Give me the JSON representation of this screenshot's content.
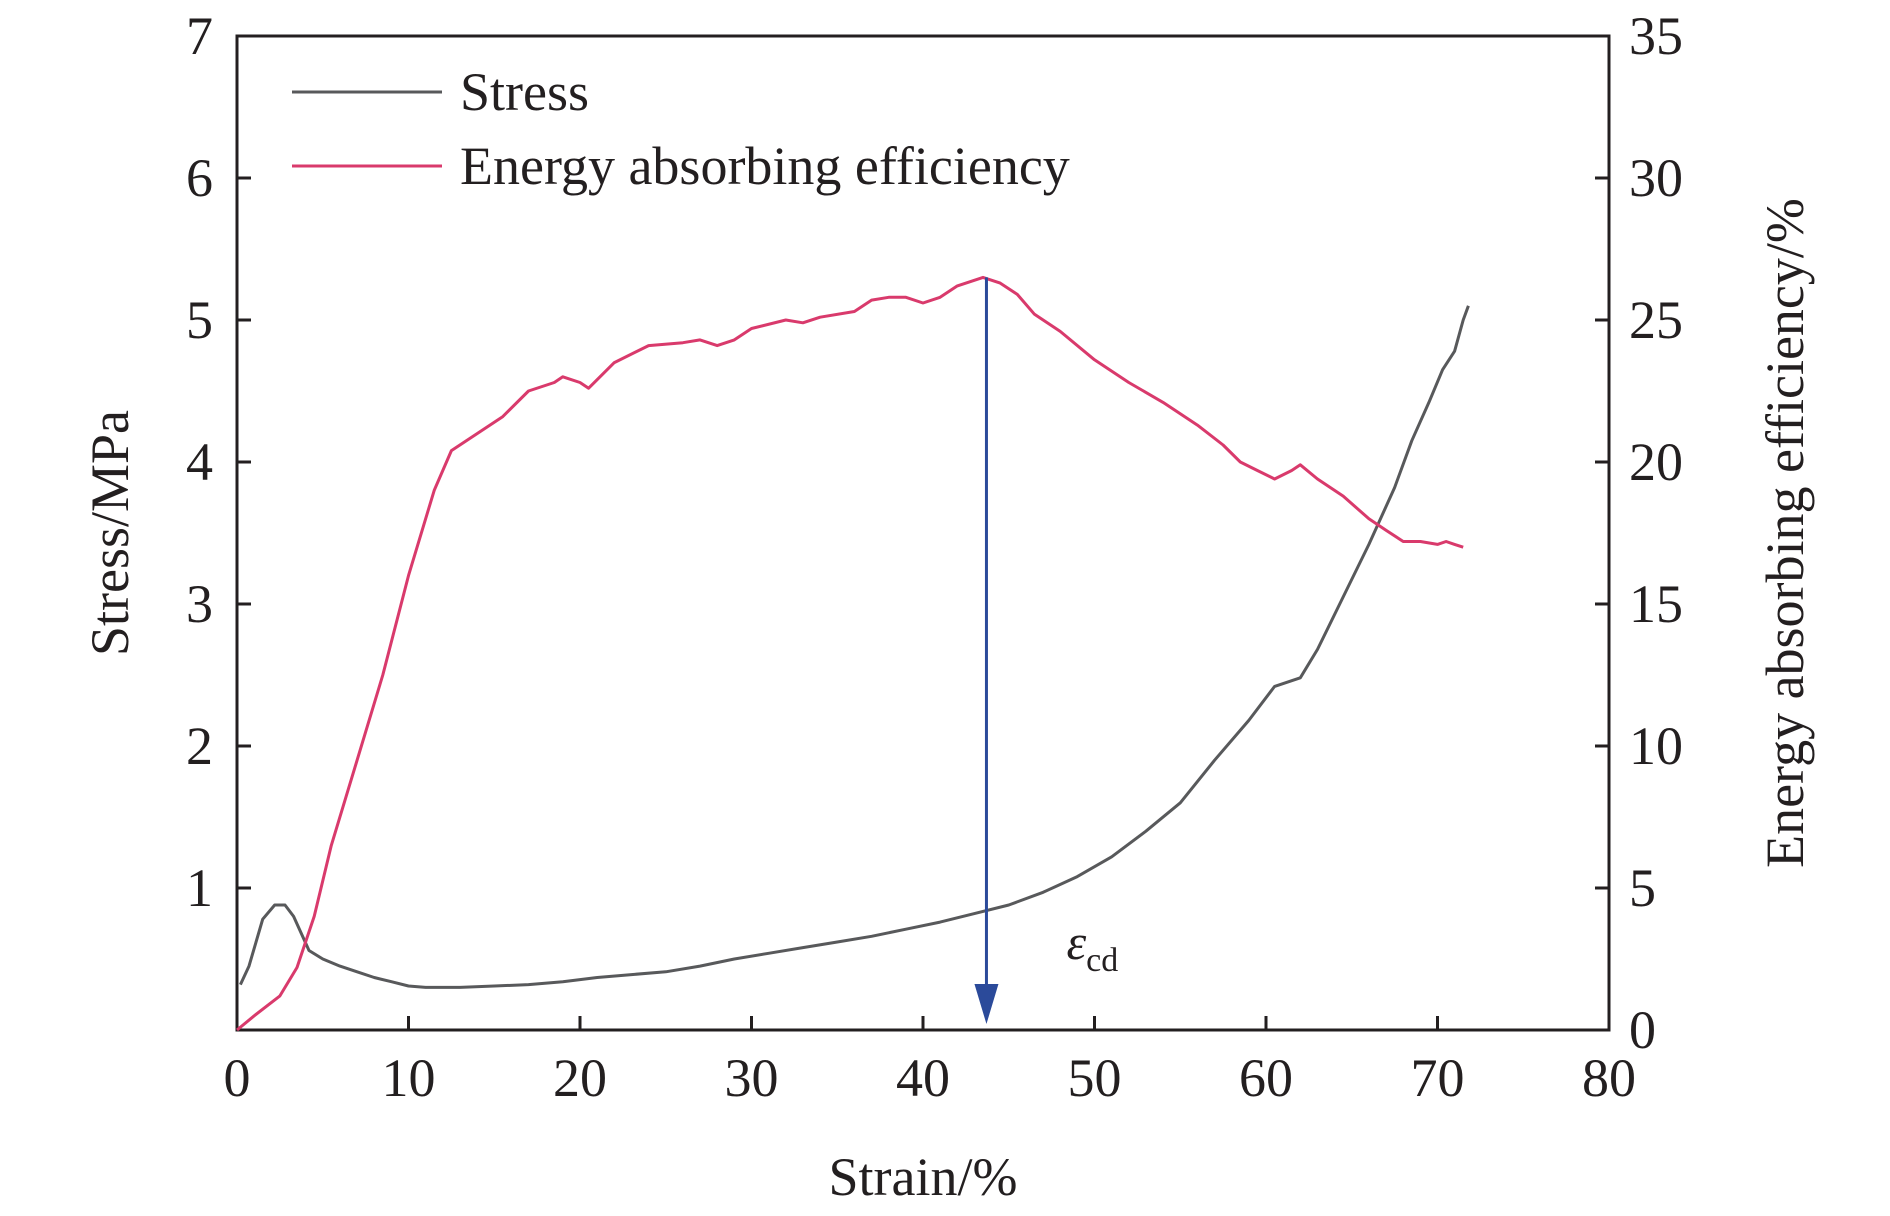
{
  "chart_data": {
    "type": "line",
    "xlabel": "Strain/%",
    "ylabel_left": "Stress/MPa",
    "ylabel_right": "Energy absorbing efficiency/%",
    "xlim": [
      0,
      80
    ],
    "ylim_left": [
      0,
      7
    ],
    "ylim_right": [
      0,
      35
    ],
    "x_ticks": [
      "0",
      "10",
      "20",
      "30",
      "40",
      "50",
      "60",
      "70",
      "80"
    ],
    "y_left_ticks": [
      "1",
      "2",
      "3",
      "4",
      "5",
      "6",
      "7"
    ],
    "y_right_ticks": [
      "0",
      "5",
      "10",
      "15",
      "20",
      "25",
      "30",
      "35"
    ],
    "legend_position": "top-left",
    "grid": false,
    "series": [
      {
        "name": "Stress",
        "axis": "left",
        "color": "#58595b",
        "points": [
          [
            0.2,
            0.32
          ],
          [
            0.7,
            0.45
          ],
          [
            1.5,
            0.78
          ],
          [
            2.2,
            0.88
          ],
          [
            2.8,
            0.88
          ],
          [
            3.3,
            0.8
          ],
          [
            4.2,
            0.56
          ],
          [
            5,
            0.5
          ],
          [
            6,
            0.45
          ],
          [
            7,
            0.41
          ],
          [
            8,
            0.37
          ],
          [
            9,
            0.34
          ],
          [
            10,
            0.31
          ],
          [
            11,
            0.3
          ],
          [
            12,
            0.3
          ],
          [
            13,
            0.3
          ],
          [
            15,
            0.31
          ],
          [
            17,
            0.32
          ],
          [
            19,
            0.34
          ],
          [
            21,
            0.37
          ],
          [
            23,
            0.39
          ],
          [
            25,
            0.41
          ],
          [
            27,
            0.45
          ],
          [
            29,
            0.5
          ],
          [
            31,
            0.54
          ],
          [
            33,
            0.58
          ],
          [
            35,
            0.62
          ],
          [
            37,
            0.66
          ],
          [
            39,
            0.71
          ],
          [
            41,
            0.76
          ],
          [
            43,
            0.82
          ],
          [
            45,
            0.88
          ],
          [
            47,
            0.97
          ],
          [
            49,
            1.08
          ],
          [
            51,
            1.22
          ],
          [
            53,
            1.4
          ],
          [
            55,
            1.6
          ],
          [
            57,
            1.9
          ],
          [
            59,
            2.18
          ],
          [
            60.5,
            2.42
          ],
          [
            62,
            2.48
          ],
          [
            63,
            2.68
          ],
          [
            64.5,
            3.05
          ],
          [
            66,
            3.42
          ],
          [
            67.5,
            3.82
          ],
          [
            68.5,
            4.15
          ],
          [
            69.5,
            4.42
          ],
          [
            70.3,
            4.65
          ],
          [
            71,
            4.78
          ],
          [
            71.5,
            5.0
          ],
          [
            71.8,
            5.1
          ]
        ]
      },
      {
        "name": "Energy absorbing efficiency",
        "axis": "right",
        "color": "#d93a6c",
        "points": [
          [
            0,
            0
          ],
          [
            1,
            0.5
          ],
          [
            2.5,
            1.2
          ],
          [
            3.5,
            2.2
          ],
          [
            4.5,
            4
          ],
          [
            5.5,
            6.5
          ],
          [
            7,
            9.5
          ],
          [
            8.5,
            12.5
          ],
          [
            10,
            16
          ],
          [
            11.5,
            19
          ],
          [
            12.5,
            20.4
          ],
          [
            14,
            21
          ],
          [
            15.5,
            21.6
          ],
          [
            17,
            22.5
          ],
          [
            18.5,
            22.8
          ],
          [
            19,
            23
          ],
          [
            20,
            22.8
          ],
          [
            20.5,
            22.6
          ],
          [
            22,
            23.5
          ],
          [
            24,
            24.1
          ],
          [
            26,
            24.2
          ],
          [
            27,
            24.3
          ],
          [
            28,
            24.1
          ],
          [
            29,
            24.3
          ],
          [
            30,
            24.7
          ],
          [
            32,
            25
          ],
          [
            33,
            24.9
          ],
          [
            34,
            25.1
          ],
          [
            36,
            25.3
          ],
          [
            37,
            25.7
          ],
          [
            38,
            25.8
          ],
          [
            39,
            25.8
          ],
          [
            40,
            25.6
          ],
          [
            41,
            25.8
          ],
          [
            42,
            26.2
          ],
          [
            43.5,
            26.5
          ],
          [
            44.5,
            26.3
          ],
          [
            45.5,
            25.9
          ],
          [
            46.5,
            25.2
          ],
          [
            48,
            24.6
          ],
          [
            50,
            23.6
          ],
          [
            52,
            22.8
          ],
          [
            54,
            22.1
          ],
          [
            56,
            21.3
          ],
          [
            57.5,
            20.6
          ],
          [
            58.5,
            20
          ],
          [
            59.5,
            19.7
          ],
          [
            60.5,
            19.4
          ],
          [
            61.5,
            19.7
          ],
          [
            62,
            19.9
          ],
          [
            63,
            19.4
          ],
          [
            64.5,
            18.8
          ],
          [
            66,
            18
          ],
          [
            67,
            17.6
          ],
          [
            68,
            17.2
          ],
          [
            69,
            17.2
          ],
          [
            70,
            17.1
          ],
          [
            70.5,
            17.2
          ],
          [
            71,
            17.1
          ],
          [
            71.5,
            17
          ]
        ]
      }
    ],
    "annotation": {
      "symbol": "ε",
      "subscript": "cd",
      "x": 43.7,
      "arrow_top_right_axis": 26.5,
      "arrow_color": "#2b4a9a"
    }
  }
}
